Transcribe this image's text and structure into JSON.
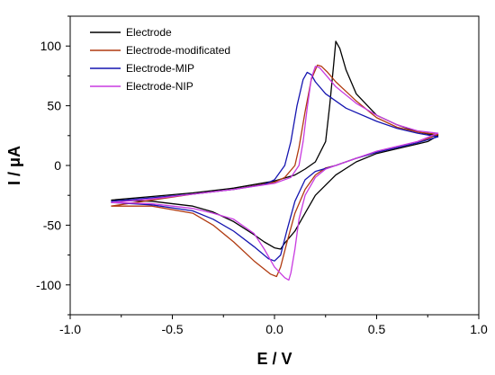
{
  "chart_data": {
    "type": "line",
    "title": "",
    "xlabel": "E / V",
    "ylabel": "I / μA",
    "xlim": [
      -1.0,
      1.0
    ],
    "ylim": [
      -125,
      125
    ],
    "x_ticks": [
      -1.0,
      -0.5,
      0.0,
      0.5,
      1.0
    ],
    "x_tick_labels": [
      "-1.0",
      "-0.5",
      "0.0",
      "0.5",
      "1.0"
    ],
    "y_ticks": [
      -100,
      -50,
      0,
      50,
      100
    ],
    "y_tick_labels": [
      "-100",
      "-50",
      "0",
      "50",
      "100"
    ],
    "grid": false,
    "legend_position": "top-left",
    "series": [
      {
        "name": "Electrode",
        "color": "#000000",
        "points": [
          [
            -0.8,
            -29
          ],
          [
            -0.6,
            -26
          ],
          [
            -0.4,
            -23
          ],
          [
            -0.2,
            -19
          ],
          [
            0.0,
            -13
          ],
          [
            0.1,
            -8
          ],
          [
            0.15,
            -3
          ],
          [
            0.2,
            3
          ],
          [
            0.25,
            20
          ],
          [
            0.27,
            50
          ],
          [
            0.29,
            85
          ],
          [
            0.3,
            104
          ],
          [
            0.32,
            98
          ],
          [
            0.35,
            80
          ],
          [
            0.4,
            60
          ],
          [
            0.5,
            42
          ],
          [
            0.6,
            34
          ],
          [
            0.7,
            28
          ],
          [
            0.8,
            25
          ],
          [
            0.75,
            20
          ],
          [
            0.7,
            18
          ],
          [
            0.6,
            14
          ],
          [
            0.5,
            10
          ],
          [
            0.4,
            3
          ],
          [
            0.3,
            -8
          ],
          [
            0.2,
            -25
          ],
          [
            0.15,
            -40
          ],
          [
            0.1,
            -55
          ],
          [
            0.05,
            -65
          ],
          [
            0.03,
            -70
          ],
          [
            0.0,
            -69
          ],
          [
            -0.05,
            -64
          ],
          [
            -0.1,
            -58
          ],
          [
            -0.2,
            -47
          ],
          [
            -0.3,
            -39
          ],
          [
            -0.4,
            -34
          ],
          [
            -0.6,
            -30
          ],
          [
            -0.8,
            -29
          ]
        ]
      },
      {
        "name": "Electrode-modificated",
        "color": "#b03a10",
        "points": [
          [
            -0.8,
            -34
          ],
          [
            -0.6,
            -29
          ],
          [
            -0.4,
            -24
          ],
          [
            -0.2,
            -20
          ],
          [
            0.0,
            -14
          ],
          [
            0.05,
            -10
          ],
          [
            0.1,
            0
          ],
          [
            0.12,
            15
          ],
          [
            0.15,
            45
          ],
          [
            0.18,
            72
          ],
          [
            0.21,
            84
          ],
          [
            0.23,
            83
          ],
          [
            0.26,
            78
          ],
          [
            0.3,
            70
          ],
          [
            0.4,
            54
          ],
          [
            0.5,
            40
          ],
          [
            0.6,
            32
          ],
          [
            0.7,
            28
          ],
          [
            0.8,
            26
          ],
          [
            0.7,
            19
          ],
          [
            0.6,
            15
          ],
          [
            0.5,
            11
          ],
          [
            0.4,
            6
          ],
          [
            0.3,
            0
          ],
          [
            0.25,
            -2
          ],
          [
            0.2,
            -8
          ],
          [
            0.15,
            -20
          ],
          [
            0.1,
            -40
          ],
          [
            0.06,
            -65
          ],
          [
            0.03,
            -85
          ],
          [
            0.01,
            -93
          ],
          [
            -0.02,
            -91
          ],
          [
            -0.1,
            -80
          ],
          [
            -0.2,
            -64
          ],
          [
            -0.3,
            -50
          ],
          [
            -0.4,
            -40
          ],
          [
            -0.6,
            -34
          ],
          [
            -0.8,
            -34
          ]
        ]
      },
      {
        "name": "Electrode-MIP",
        "color": "#1515b0",
        "points": [
          [
            -0.8,
            -30
          ],
          [
            -0.6,
            -27
          ],
          [
            -0.4,
            -24
          ],
          [
            -0.2,
            -20
          ],
          [
            -0.05,
            -16
          ],
          [
            0.0,
            -12
          ],
          [
            0.05,
            0
          ],
          [
            0.08,
            20
          ],
          [
            0.11,
            50
          ],
          [
            0.14,
            72
          ],
          [
            0.16,
            78
          ],
          [
            0.18,
            76
          ],
          [
            0.2,
            70
          ],
          [
            0.25,
            60
          ],
          [
            0.35,
            48
          ],
          [
            0.5,
            37
          ],
          [
            0.6,
            31
          ],
          [
            0.7,
            27
          ],
          [
            0.8,
            24
          ],
          [
            0.7,
            19
          ],
          [
            0.6,
            15
          ],
          [
            0.5,
            11
          ],
          [
            0.4,
            6
          ],
          [
            0.3,
            0
          ],
          [
            0.2,
            -5
          ],
          [
            0.15,
            -12
          ],
          [
            0.1,
            -30
          ],
          [
            0.06,
            -55
          ],
          [
            0.03,
            -75
          ],
          [
            0.0,
            -80
          ],
          [
            -0.03,
            -78
          ],
          [
            -0.1,
            -68
          ],
          [
            -0.2,
            -55
          ],
          [
            -0.3,
            -45
          ],
          [
            -0.4,
            -38
          ],
          [
            -0.6,
            -33
          ],
          [
            -0.8,
            -31
          ]
        ]
      },
      {
        "name": "Electrode-NIP",
        "color": "#c83ae0",
        "points": [
          [
            -0.8,
            -31
          ],
          [
            -0.6,
            -28
          ],
          [
            -0.4,
            -24
          ],
          [
            -0.2,
            -20
          ],
          [
            0.0,
            -15
          ],
          [
            0.08,
            -10
          ],
          [
            0.12,
            0
          ],
          [
            0.14,
            20
          ],
          [
            0.16,
            48
          ],
          [
            0.18,
            73
          ],
          [
            0.2,
            83
          ],
          [
            0.22,
            82
          ],
          [
            0.25,
            76
          ],
          [
            0.3,
            66
          ],
          [
            0.4,
            52
          ],
          [
            0.5,
            42
          ],
          [
            0.6,
            34
          ],
          [
            0.7,
            29
          ],
          [
            0.8,
            27
          ],
          [
            0.7,
            20
          ],
          [
            0.6,
            16
          ],
          [
            0.5,
            12
          ],
          [
            0.4,
            6
          ],
          [
            0.3,
            0
          ],
          [
            0.25,
            -3
          ],
          [
            0.2,
            -10
          ],
          [
            0.15,
            -25
          ],
          [
            0.12,
            -45
          ],
          [
            0.1,
            -70
          ],
          [
            0.08,
            -90
          ],
          [
            0.07,
            -96
          ],
          [
            0.05,
            -94
          ],
          [
            0.0,
            -85
          ],
          [
            -0.05,
            -70
          ],
          [
            -0.1,
            -57
          ],
          [
            -0.2,
            -45
          ],
          [
            -0.3,
            -40
          ],
          [
            -0.4,
            -36
          ],
          [
            -0.6,
            -32
          ],
          [
            -0.8,
            -31
          ]
        ]
      }
    ]
  }
}
